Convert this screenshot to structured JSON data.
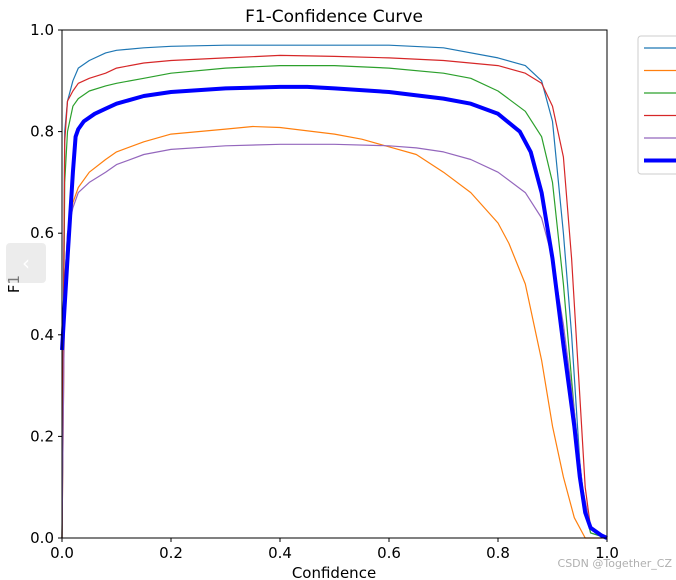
{
  "chart_data": {
    "type": "line",
    "title": "F1-Confidence Curve",
    "xlabel": "Confidence",
    "ylabel": "F1",
    "xlim": [
      0,
      1
    ],
    "ylim": [
      0,
      1
    ],
    "x_ticks": [
      "0.0",
      "0.2",
      "0.4",
      "0.6",
      "0.8",
      "1.0"
    ],
    "y_ticks": [
      "0.0",
      "0.2",
      "0.4",
      "0.6",
      "0.8",
      "1.0"
    ],
    "grid": false,
    "legend": "top-right, entry labels cut off at right edge",
    "series": [
      {
        "color": "#1f77b4",
        "width": 1.2,
        "x": [
          0.0,
          0.005,
          0.01,
          0.02,
          0.03,
          0.05,
          0.08,
          0.1,
          0.15,
          0.2,
          0.3,
          0.4,
          0.5,
          0.6,
          0.7,
          0.8,
          0.85,
          0.88,
          0.9,
          0.92,
          0.935,
          0.95,
          0.96,
          0.97,
          1.0
        ],
        "y": [
          0.0,
          0.8,
          0.86,
          0.9,
          0.925,
          0.94,
          0.955,
          0.96,
          0.965,
          0.968,
          0.97,
          0.97,
          0.97,
          0.97,
          0.965,
          0.945,
          0.93,
          0.9,
          0.82,
          0.6,
          0.4,
          0.15,
          0.05,
          0.01,
          0.0
        ]
      },
      {
        "color": "#ff7f0e",
        "width": 1.2,
        "x": [
          0.0,
          0.005,
          0.01,
          0.02,
          0.03,
          0.05,
          0.08,
          0.1,
          0.15,
          0.2,
          0.3,
          0.35,
          0.4,
          0.5,
          0.55,
          0.6,
          0.65,
          0.7,
          0.75,
          0.8,
          0.82,
          0.85,
          0.88,
          0.9,
          0.92,
          0.94,
          0.96,
          1.0
        ],
        "y": [
          0.0,
          0.5,
          0.6,
          0.66,
          0.69,
          0.72,
          0.745,
          0.76,
          0.78,
          0.795,
          0.805,
          0.81,
          0.808,
          0.795,
          0.785,
          0.77,
          0.755,
          0.72,
          0.68,
          0.62,
          0.58,
          0.5,
          0.35,
          0.22,
          0.12,
          0.04,
          0.0,
          0.0
        ]
      },
      {
        "color": "#2ca02c",
        "width": 1.2,
        "x": [
          0.0,
          0.005,
          0.01,
          0.02,
          0.03,
          0.05,
          0.08,
          0.1,
          0.15,
          0.2,
          0.3,
          0.4,
          0.5,
          0.6,
          0.7,
          0.75,
          0.8,
          0.85,
          0.88,
          0.9,
          0.92,
          0.94,
          0.955,
          0.97,
          1.0
        ],
        "y": [
          0.0,
          0.7,
          0.8,
          0.85,
          0.865,
          0.88,
          0.89,
          0.895,
          0.905,
          0.915,
          0.925,
          0.93,
          0.93,
          0.925,
          0.915,
          0.905,
          0.88,
          0.84,
          0.79,
          0.7,
          0.5,
          0.25,
          0.08,
          0.01,
          0.0
        ]
      },
      {
        "color": "#d62728",
        "width": 1.2,
        "x": [
          0.0,
          0.005,
          0.01,
          0.02,
          0.03,
          0.05,
          0.08,
          0.1,
          0.15,
          0.2,
          0.3,
          0.4,
          0.5,
          0.6,
          0.7,
          0.8,
          0.85,
          0.88,
          0.9,
          0.92,
          0.935,
          0.95,
          0.96,
          0.97,
          1.0
        ],
        "y": [
          0.0,
          0.78,
          0.86,
          0.88,
          0.895,
          0.905,
          0.915,
          0.925,
          0.935,
          0.94,
          0.945,
          0.95,
          0.948,
          0.945,
          0.94,
          0.93,
          0.915,
          0.895,
          0.85,
          0.75,
          0.55,
          0.28,
          0.1,
          0.02,
          0.0
        ]
      },
      {
        "color": "#9467bd",
        "width": 1.2,
        "x": [
          0.0,
          0.005,
          0.01,
          0.02,
          0.03,
          0.05,
          0.08,
          0.1,
          0.15,
          0.2,
          0.3,
          0.4,
          0.5,
          0.6,
          0.65,
          0.7,
          0.75,
          0.8,
          0.85,
          0.88,
          0.9,
          0.92,
          0.94,
          0.955,
          0.97,
          1.0
        ],
        "y": [
          0.0,
          0.5,
          0.6,
          0.65,
          0.68,
          0.7,
          0.72,
          0.735,
          0.755,
          0.765,
          0.772,
          0.775,
          0.775,
          0.772,
          0.768,
          0.76,
          0.745,
          0.72,
          0.68,
          0.63,
          0.55,
          0.42,
          0.25,
          0.1,
          0.02,
          0.0
        ]
      },
      {
        "color": "#0000ff",
        "width": 4,
        "x": [
          0.0,
          0.01,
          0.02,
          0.025,
          0.03,
          0.04,
          0.06,
          0.08,
          0.1,
          0.15,
          0.2,
          0.3,
          0.4,
          0.45,
          0.5,
          0.6,
          0.7,
          0.75,
          0.8,
          0.84,
          0.86,
          0.88,
          0.9,
          0.92,
          0.94,
          0.95,
          0.96,
          0.97,
          0.99,
          1.0
        ],
        "y": [
          0.37,
          0.55,
          0.72,
          0.79,
          0.805,
          0.82,
          0.835,
          0.845,
          0.855,
          0.87,
          0.878,
          0.885,
          0.888,
          0.888,
          0.885,
          0.878,
          0.865,
          0.855,
          0.835,
          0.8,
          0.76,
          0.68,
          0.55,
          0.38,
          0.22,
          0.12,
          0.05,
          0.02,
          0.005,
          0.0
        ]
      }
    ]
  },
  "watermark": "CSDN @Together_CZ",
  "nav": {
    "prev_arrow": "‹"
  }
}
